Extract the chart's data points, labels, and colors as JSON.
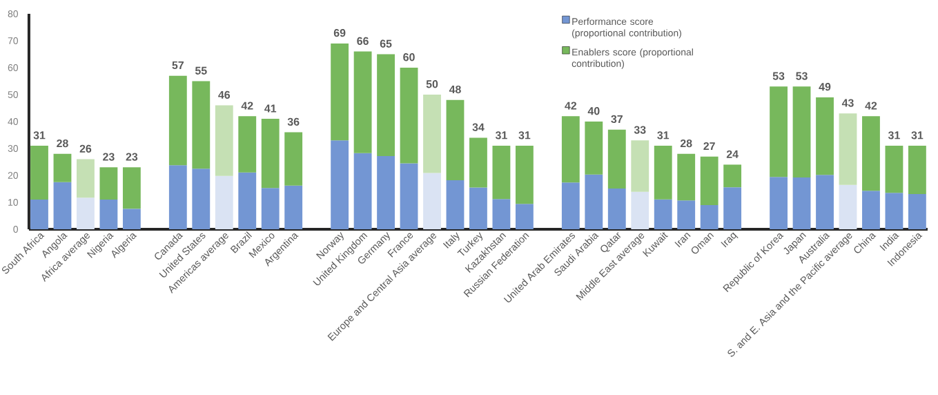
{
  "chart_data": {
    "type": "bar",
    "stacked": true,
    "categories": [
      "South Africa",
      "Angola",
      "Africa average",
      "Nigeria",
      "Algeria",
      null,
      "Canada",
      "United States",
      "Americas average",
      "Brazil",
      "Mexico",
      "Argentina",
      null,
      "Norway",
      "United Kingdom",
      "Germany",
      "France",
      "Europe and Central Asia average",
      "Italy",
      "Turkey",
      "Kazakhstan",
      "Russian Federation",
      null,
      "United Arab Emirates",
      "Saudi Arabia",
      "Qatar",
      "Middle East average",
      "Kuwait",
      "Iran",
      "Oman",
      "Iraq",
      null,
      "Republic of Korea",
      "Japan",
      "Australia",
      "S. and E. Asia and the Pacific average",
      "China",
      "India",
      "Indonesia"
    ],
    "series": [
      {
        "name": "Performance score (proportional contribution)",
        "color": "#7396d3",
        "values": [
          11.0,
          17.5,
          11.7,
          11.0,
          7.6,
          null,
          23.8,
          22.5,
          19.8,
          21.1,
          15.3,
          16.2,
          null,
          33.0,
          28.3,
          27.2,
          24.5,
          20.9,
          18.2,
          15.5,
          11.2,
          9.4,
          null,
          17.4,
          20.3,
          15.1,
          13.9,
          11.1,
          10.7,
          9.0,
          15.6,
          null,
          19.4,
          19.2,
          20.2,
          16.5,
          14.3,
          13.5,
          13.1
        ],
        "colors": [
          "#7396d3",
          "#7396d3",
          "#dae3f3",
          "#7396d3",
          "#7396d3",
          null,
          "#7396d3",
          "#7396d3",
          "#dae3f3",
          "#7396d3",
          "#7396d3",
          "#7396d3",
          null,
          "#7396d3",
          "#7396d3",
          "#7396d3",
          "#7396d3",
          "#dae3f3",
          "#7396d3",
          "#7396d3",
          "#7396d3",
          "#7396d3",
          null,
          "#7396d3",
          "#7396d3",
          "#7396d3",
          "#dae3f3",
          "#7396d3",
          "#7396d3",
          "#7396d3",
          "#7396d3",
          null,
          "#7396d3",
          "#7396d3",
          "#7396d3",
          "#dae3f3",
          "#7396d3",
          "#7396d3",
          "#7396d3"
        ]
      },
      {
        "name": "Enablers score (proportional contribution)",
        "color": "#77b85c",
        "values": [
          20.0,
          10.5,
          14.3,
          12.0,
          15.4,
          null,
          33.2,
          32.5,
          26.2,
          20.9,
          25.7,
          19.8,
          null,
          36.0,
          37.7,
          37.8,
          35.5,
          29.1,
          29.8,
          18.5,
          19.8,
          21.6,
          null,
          24.6,
          19.7,
          21.9,
          19.1,
          19.9,
          17.3,
          18.0,
          8.4,
          null,
          33.6,
          33.8,
          28.8,
          26.5,
          27.7,
          17.5,
          17.9
        ],
        "colors": [
          "#77b85c",
          "#77b85c",
          "#c5e0b4",
          "#77b85c",
          "#77b85c",
          null,
          "#77b85c",
          "#77b85c",
          "#c5e0b4",
          "#77b85c",
          "#77b85c",
          "#77b85c",
          null,
          "#77b85c",
          "#77b85c",
          "#77b85c",
          "#77b85c",
          "#c5e0b4",
          "#77b85c",
          "#77b85c",
          "#77b85c",
          "#77b85c",
          null,
          "#77b85c",
          "#77b85c",
          "#77b85c",
          "#c5e0b4",
          "#77b85c",
          "#77b85c",
          "#77b85c",
          "#77b85c",
          null,
          "#77b85c",
          "#77b85c",
          "#77b85c",
          "#c5e0b4",
          "#77b85c",
          "#77b85c",
          "#77b85c"
        ]
      }
    ],
    "totals": [
      "31",
      "28",
      "26",
      "23",
      "23",
      null,
      "57",
      "55",
      "46",
      "42",
      "41",
      "36",
      null,
      "69",
      "66",
      "65",
      "60",
      "50",
      "48",
      "34",
      "31",
      "31",
      null,
      "42",
      "40",
      "37",
      "33",
      "31",
      "28",
      "27",
      "24",
      null,
      "53",
      "53",
      "49",
      "43",
      "42",
      "31",
      "31"
    ],
    "ylim": [
      0,
      80
    ],
    "yticks": [
      0,
      10,
      20,
      30,
      40,
      50,
      60,
      70,
      80
    ],
    "legend": "top right"
  }
}
